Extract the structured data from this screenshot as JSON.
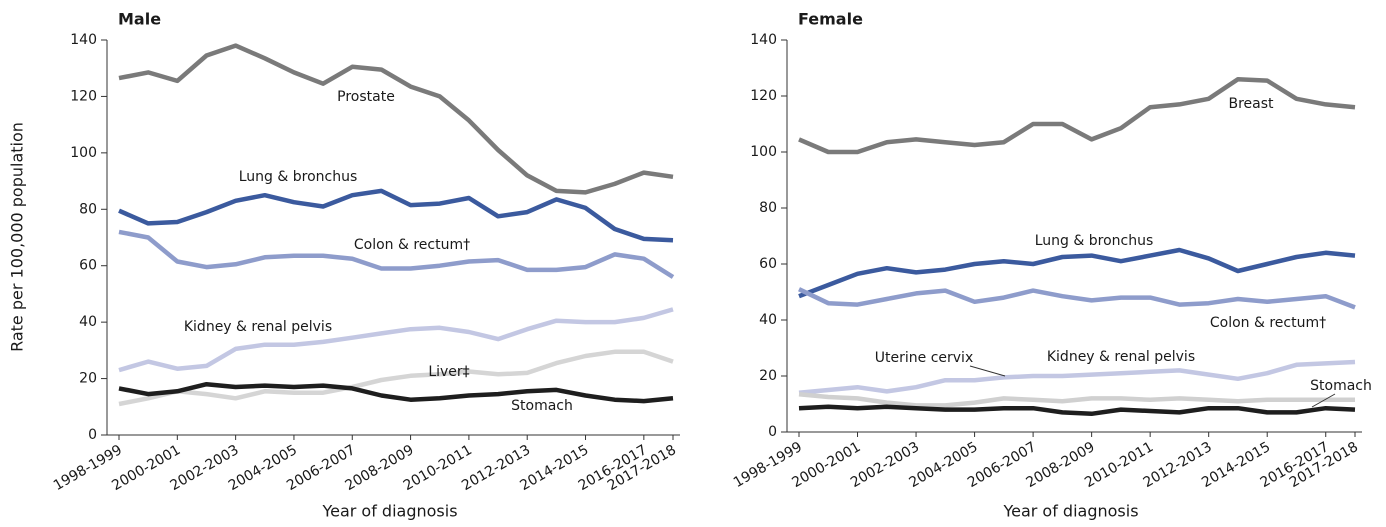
{
  "chart_data": [
    {
      "type": "line",
      "title": "Male",
      "xlabel": "Year of diagnosis",
      "ylabel": "Rate per 100,000 population",
      "categories": [
        "1998-1999",
        null,
        "2000-2001",
        null,
        "2002-2003",
        null,
        "2004-2005",
        null,
        "2006-2007",
        null,
        "2008-2009",
        null,
        "2010-2011",
        null,
        "2012-2013",
        null,
        "2014-2015",
        null,
        "2016-2017",
        "2017-2018"
      ],
      "ylim": [
        0,
        140
      ],
      "yticks": [
        0,
        20,
        40,
        60,
        80,
        100,
        120,
        140
      ],
      "series": [
        {
          "name": "Prostate",
          "color": "#7a7a7a",
          "values": [
            126.5,
            128.5,
            125.5,
            134.5,
            138,
            133.5,
            128.5,
            124.5,
            130.5,
            129.5,
            123.5,
            120,
            111.5,
            101,
            92,
            86.5,
            86,
            89,
            93,
            91.5
          ]
        },
        {
          "name": "Lung & bronchus",
          "color": "#3b5a9e",
          "values": [
            79.5,
            75,
            75.5,
            79,
            83,
            85,
            82.5,
            81,
            85,
            86.5,
            81.5,
            82,
            84,
            77.5,
            79,
            83.5,
            80.5,
            73,
            69.5,
            69
          ]
        },
        {
          "name": "Colon & rectum†",
          "color": "#8e9ccb",
          "values": [
            72,
            70,
            61.5,
            59.5,
            60.5,
            63,
            63.5,
            63.5,
            62.5,
            59,
            59,
            60,
            61.5,
            62,
            58.5,
            58.5,
            59.5,
            64,
            62.5,
            56
          ]
        },
        {
          "name": "Kidney & renal pelvis",
          "color": "#c3c7e3",
          "values": [
            23,
            26,
            23.5,
            24.5,
            30.5,
            32,
            32,
            33,
            34.5,
            36,
            37.5,
            38,
            36.5,
            34,
            37.5,
            40.5,
            40,
            40,
            41.5,
            44.5
          ]
        },
        {
          "name": "Liver‡",
          "color": "#d5d5d5",
          "values": [
            11,
            13,
            15.5,
            14.5,
            13,
            15.5,
            15,
            15,
            17,
            19.5,
            21,
            21.5,
            22.5,
            21.5,
            22,
            25.5,
            28,
            29.5,
            29.5,
            26
          ]
        },
        {
          "name": "Stomach",
          "color": "#1e1e1e",
          "values": [
            16.5,
            14.5,
            15.5,
            18,
            17,
            17.5,
            17,
            17.5,
            16.5,
            14,
            12.5,
            13,
            14,
            14.5,
            15.5,
            16,
            14,
            12.5,
            12,
            13
          ]
        }
      ]
    },
    {
      "type": "line",
      "title": "Female",
      "xlabel": "Year of diagnosis",
      "categories": [
        "1998-1999",
        null,
        "2000-2001",
        null,
        "2002-2003",
        null,
        "2004-2005",
        null,
        "2006-2007",
        null,
        "2008-2009",
        null,
        "2010-2011",
        null,
        "2012-2013",
        null,
        "2014-2015",
        null,
        "2016-2017",
        "2017-2018"
      ],
      "ylim": [
        0,
        140
      ],
      "yticks": [
        0,
        20,
        40,
        60,
        80,
        100,
        120,
        140
      ],
      "series": [
        {
          "name": "Breast",
          "color": "#7a7a7a",
          "values": [
            104.5,
            100,
            100,
            103.5,
            104.5,
            103.5,
            102.5,
            103.5,
            110,
            110,
            104.5,
            108.5,
            116,
            117,
            119,
            126,
            125.5,
            119,
            117,
            116
          ]
        },
        {
          "name": "Lung & bronchus",
          "color": "#3b5a9e",
          "values": [
            48.5,
            52.5,
            56.5,
            58.5,
            57,
            58,
            60,
            61,
            60,
            62.5,
            63,
            61,
            63,
            65,
            62,
            57.5,
            60,
            62.5,
            64,
            63
          ]
        },
        {
          "name": "Colon & rectum†",
          "color": "#8e9ccb",
          "values": [
            51,
            46,
            45.5,
            47.5,
            49.5,
            50.5,
            46.5,
            48,
            50.5,
            48.5,
            47,
            48,
            48,
            45.5,
            46,
            47.5,
            46.5,
            47.5,
            48.5,
            44.5
          ]
        },
        {
          "name": "Kidney & renal pelvis",
          "color": "#c3c7e3",
          "values": [
            14,
            15,
            16,
            14.5,
            16,
            18.5,
            18.5,
            19.5,
            20,
            20,
            20.5,
            21,
            21.5,
            22,
            20.5,
            19,
            21,
            24,
            24.5,
            25
          ]
        },
        {
          "name": "Uterine cervix",
          "color": "#d0d0d0",
          "values": [
            13.5,
            12.5,
            12,
            10.5,
            9.5,
            9.5,
            10.5,
            12,
            11.5,
            11,
            12,
            12,
            11.5,
            12,
            11.5,
            11,
            11.5,
            11.5,
            11.5,
            11.5
          ]
        },
        {
          "name": "Stomach",
          "color": "#1e1e1e",
          "values": [
            8.5,
            9,
            8.5,
            9,
            8.5,
            8,
            8,
            8.5,
            8.5,
            7,
            6.5,
            8,
            7.5,
            7,
            8.5,
            8.5,
            7,
            7,
            8.5,
            8
          ]
        }
      ]
    }
  ]
}
